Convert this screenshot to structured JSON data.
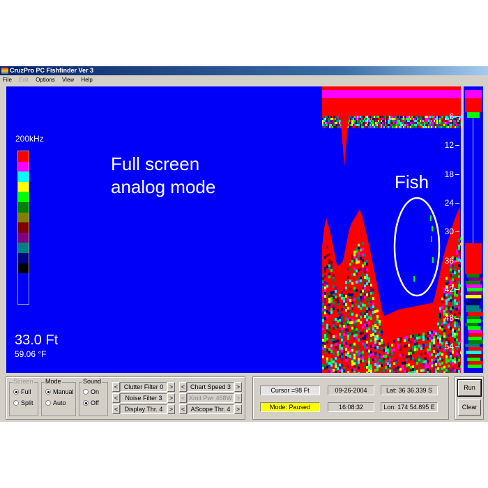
{
  "window": {
    "title": "CruzPro PC Fishfinder Ver 3"
  },
  "menu": [
    {
      "label": "File",
      "enabled": true
    },
    {
      "label": "Edit",
      "enabled": false
    },
    {
      "label": "Options",
      "enabled": true
    },
    {
      "label": "View",
      "enabled": true
    },
    {
      "label": "Help",
      "enabled": true
    }
  ],
  "display": {
    "frequency": "200kHz",
    "annotation_line1": "Full screen",
    "annotation_line2": "analog mode",
    "fish_label": "Fish",
    "depth": "33.0 Ft",
    "temperature_value": "59.06",
    "temperature_unit": "°F",
    "depth_scale": [
      "6",
      "12",
      "18",
      "24",
      "30",
      "36",
      "42",
      "48",
      "54"
    ],
    "color_scale": [
      "#ff0000",
      "#ff00ff",
      "#00ffff",
      "#ffff00",
      "#00ff00",
      "#008000",
      "#808000",
      "#800000",
      "#800080",
      "#008080",
      "#000080",
      "#000000",
      "#0000f8",
      "#0000f8",
      "#0000f8"
    ],
    "echo_colors": [
      "#ff0000",
      "#00ff00",
      "#ffff00",
      "#008000",
      "#800000",
      "#800080",
      "#008080",
      "#00ffff",
      "#ff00ff",
      "#000080"
    ]
  },
  "controls": {
    "screen": {
      "label": "Screen",
      "options": [
        "Full",
        "Split"
      ],
      "selected": "Full",
      "enabled": false
    },
    "mode": {
      "label": "Mode",
      "options": [
        "Manual",
        "Auto"
      ],
      "selected": "Manual"
    },
    "sound": {
      "label": "Sound",
      "options": [
        "On",
        "Off"
      ],
      "selected": "Off"
    },
    "steppers": [
      {
        "label": "Clutter Filter 0",
        "enabled": true
      },
      {
        "label": "Noise Filter 3",
        "enabled": true
      },
      {
        "label": "Display Thr. 4",
        "enabled": true
      },
      {
        "label": "Chart Speed 3",
        "enabled": true
      },
      {
        "label": "Xmit Pwr 468W",
        "enabled": false
      },
      {
        "label": "AScope Thr. 4",
        "enabled": true
      }
    ],
    "left_arrow": "<",
    "right_arrow": ">"
  },
  "status": {
    "cursor": "Cursor =98 Ft",
    "mode": "Mode: Paused",
    "mode_color": "#ffff00",
    "date": "09-26-2004",
    "time": "16:08:32",
    "lat": "Lat: 36  36.339 S",
    "lon": "Lon: 174  54.895 E"
  },
  "buttons": {
    "run": "Run",
    "clear": "Clear"
  }
}
